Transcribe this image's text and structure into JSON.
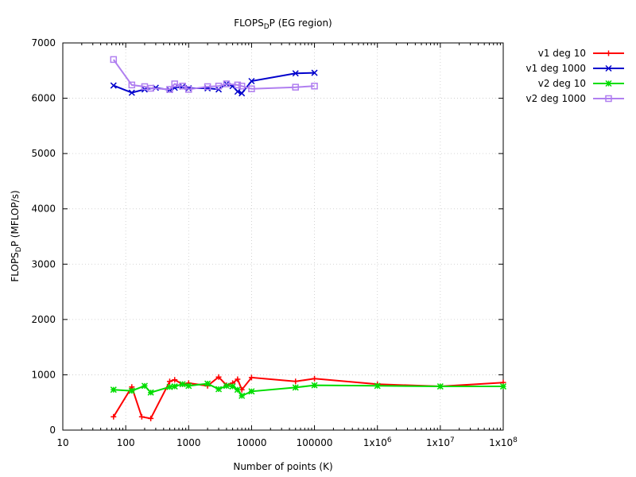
{
  "chart_data": {
    "type": "line",
    "title_main": "FLOPS",
    "title_sub": "D",
    "title_rest": "P (EG region)",
    "xlabel": "Number of points (K)",
    "ylabel_main": "FLOPS",
    "ylabel_sub": "D",
    "ylabel_rest": "P (MFLOP/s)",
    "xscale": "log",
    "xlim": [
      10,
      100000000
    ],
    "ylim": [
      0,
      7000
    ],
    "grid": true,
    "legend_position": "outside-top-right",
    "x_ticks": [
      {
        "value": 10,
        "label": "10"
      },
      {
        "value": 100,
        "label": "100"
      },
      {
        "value": 1000,
        "label": "1000"
      },
      {
        "value": 10000,
        "label": "10000"
      },
      {
        "value": 100000,
        "label": "100000"
      },
      {
        "value": 1000000,
        "label": "1x10",
        "exp": "6"
      },
      {
        "value": 10000000,
        "label": "1x10",
        "exp": "7"
      },
      {
        "value": 100000000,
        "label": "1x10",
        "exp": "8"
      }
    ],
    "y_ticks": [
      {
        "value": 0,
        "label": "0"
      },
      {
        "value": 1000,
        "label": "1000"
      },
      {
        "value": 2000,
        "label": "2000"
      },
      {
        "value": 3000,
        "label": "3000"
      },
      {
        "value": 4000,
        "label": "4000"
      },
      {
        "value": 5000,
        "label": "5000"
      },
      {
        "value": 6000,
        "label": "6000"
      },
      {
        "value": 7000,
        "label": "7000"
      }
    ],
    "series": [
      {
        "name": "v1 deg 10",
        "color": "#ff0000",
        "marker": "plus",
        "points": [
          [
            64,
            240
          ],
          [
            125,
            780
          ],
          [
            180,
            240
          ],
          [
            250,
            210
          ],
          [
            500,
            880
          ],
          [
            600,
            910
          ],
          [
            800,
            830
          ],
          [
            1000,
            850
          ],
          [
            2000,
            800
          ],
          [
            3000,
            960
          ],
          [
            4000,
            810
          ],
          [
            5000,
            850
          ],
          [
            6000,
            920
          ],
          [
            7000,
            730
          ],
          [
            10000,
            950
          ],
          [
            50000,
            880
          ],
          [
            100000,
            930
          ],
          [
            1000000,
            830
          ],
          [
            10000000,
            790
          ],
          [
            100000000,
            860
          ]
        ]
      },
      {
        "name": "v1 deg 1000",
        "color": "#0000cc",
        "marker": "cross",
        "points": [
          [
            64,
            6230
          ],
          [
            125,
            6100
          ],
          [
            200,
            6160
          ],
          [
            300,
            6190
          ],
          [
            500,
            6150
          ],
          [
            600,
            6190
          ],
          [
            800,
            6210
          ],
          [
            1000,
            6180
          ],
          [
            2000,
            6180
          ],
          [
            3000,
            6160
          ],
          [
            4000,
            6260
          ],
          [
            5000,
            6220
          ],
          [
            6000,
            6120
          ],
          [
            7000,
            6090
          ],
          [
            10000,
            6310
          ],
          [
            50000,
            6450
          ],
          [
            100000,
            6460
          ]
        ]
      },
      {
        "name": "v2 deg 10",
        "color": "#00dd00",
        "marker": "star",
        "points": [
          [
            64,
            730
          ],
          [
            125,
            710
          ],
          [
            200,
            800
          ],
          [
            250,
            680
          ],
          [
            500,
            780
          ],
          [
            600,
            790
          ],
          [
            800,
            830
          ],
          [
            1000,
            800
          ],
          [
            2000,
            840
          ],
          [
            3000,
            740
          ],
          [
            4000,
            800
          ],
          [
            5000,
            790
          ],
          [
            6000,
            730
          ],
          [
            7000,
            620
          ],
          [
            10000,
            700
          ],
          [
            50000,
            770
          ],
          [
            100000,
            810
          ],
          [
            1000000,
            800
          ],
          [
            10000000,
            790
          ],
          [
            100000000,
            790
          ]
        ]
      },
      {
        "name": "v2 deg 1000",
        "color": "#b07ff0",
        "marker": "square",
        "points": [
          [
            64,
            6700
          ],
          [
            125,
            6240
          ],
          [
            200,
            6210
          ],
          [
            250,
            6180
          ],
          [
            500,
            6160
          ],
          [
            600,
            6260
          ],
          [
            800,
            6220
          ],
          [
            1000,
            6160
          ],
          [
            2000,
            6210
          ],
          [
            3000,
            6220
          ],
          [
            4000,
            6260
          ],
          [
            6000,
            6240
          ],
          [
            7000,
            6220
          ],
          [
            10000,
            6170
          ],
          [
            50000,
            6200
          ],
          [
            100000,
            6220
          ]
        ]
      }
    ]
  }
}
